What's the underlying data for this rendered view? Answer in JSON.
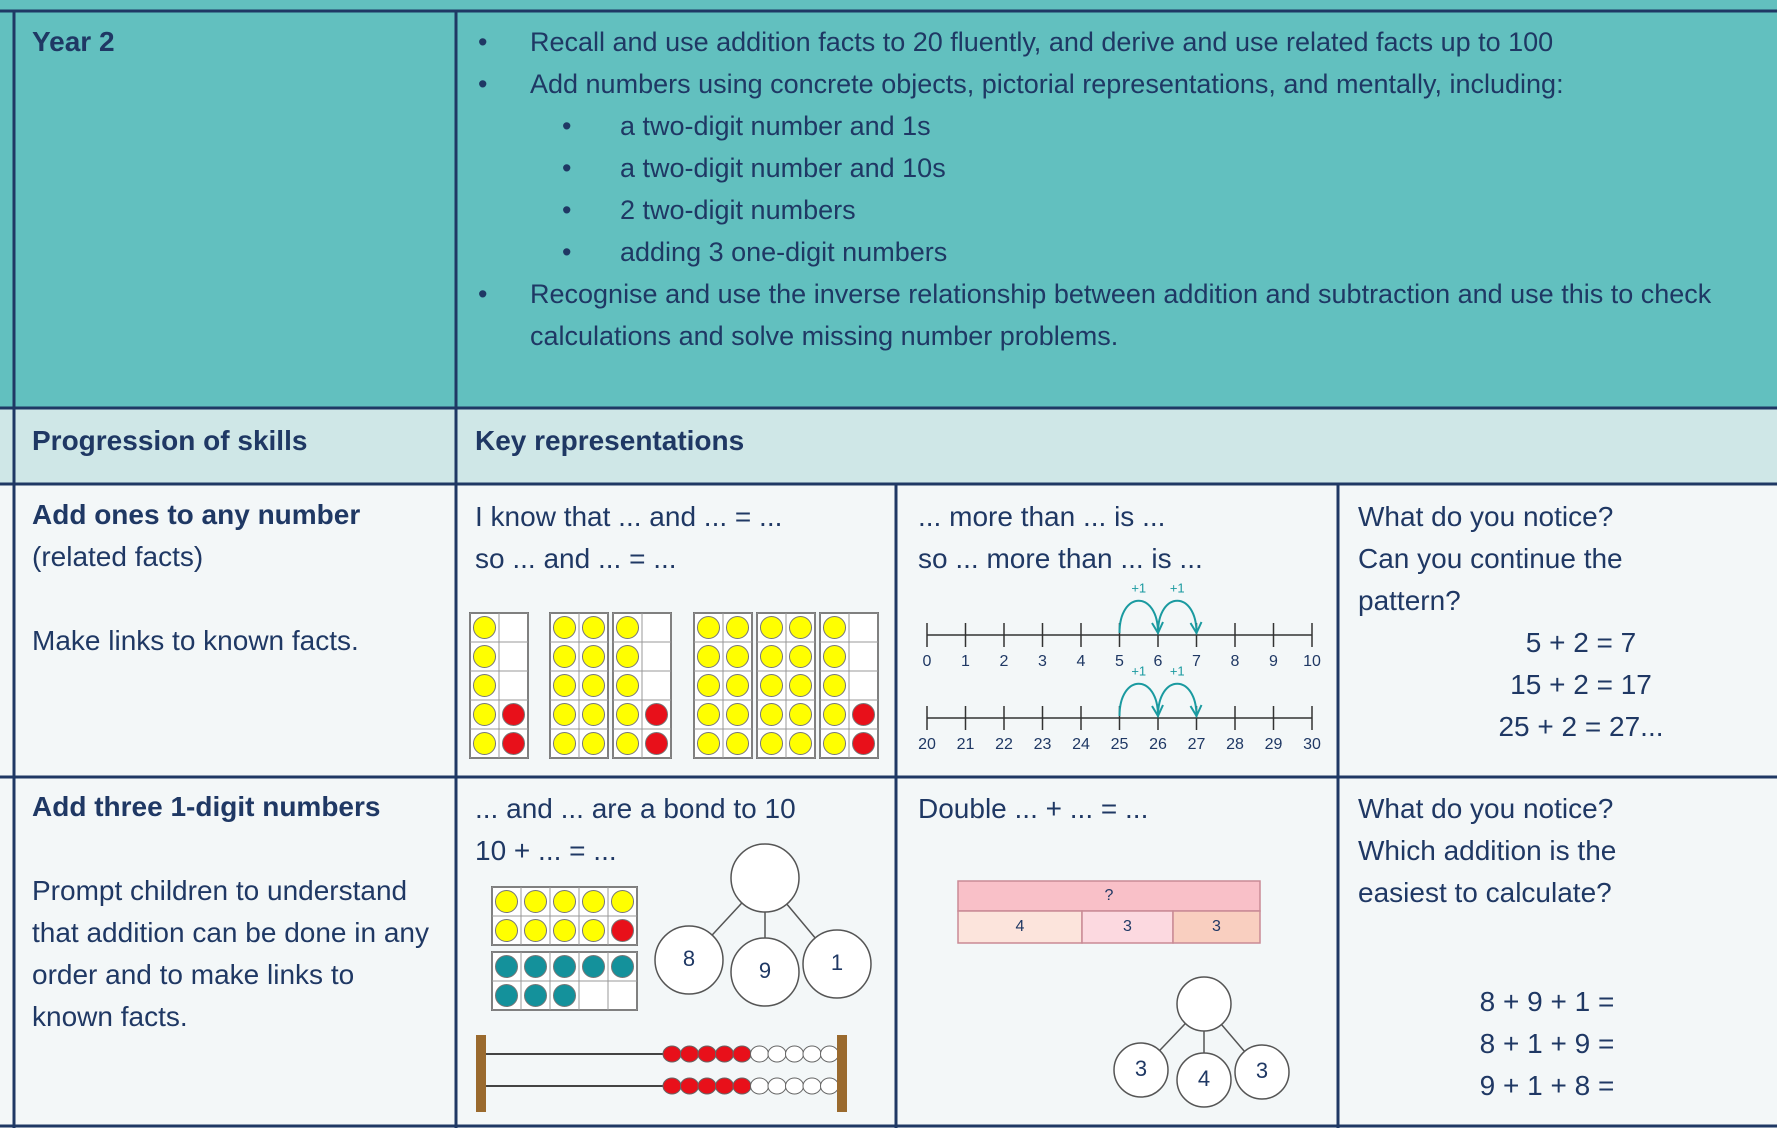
{
  "header": {
    "year": "Year 2",
    "objectives": [
      {
        "text": "Recall and use addition facts to 20 fluently, and derive and use related facts up to 100",
        "sub": []
      },
      {
        "text": "Add numbers using concrete objects, pictorial representations, and mentally, including:",
        "sub": [
          "a two-digit number and 1s",
          "a two-digit number and 10s",
          "2 two-digit numbers",
          "adding 3 one-digit numbers"
        ]
      },
      {
        "text": "Recognise and use the inverse relationship between addition and subtraction and use this to check calculations and solve missing number problems.",
        "sub": []
      }
    ]
  },
  "subheader": {
    "left": "Progression of skills",
    "right": "Key representations"
  },
  "rows": [
    {
      "skill_title": "Add ones to any number",
      "skill_note": "(related facts)",
      "skill_detail": "Make links to known facts.",
      "cells": [
        {
          "lines": [
            "I know that ... and ... = ...",
            "so ... and ... = ..."
          ]
        },
        {
          "lines": [
            "... more than ... is ...",
            "so ... more than ... is ..."
          ],
          "number_lines": [
            {
              "labels": [
                0,
                1,
                2,
                3,
                4,
                5,
                6,
                7,
                8,
                9,
                10
              ],
              "jumps": [
                "+1",
                "+1"
              ]
            },
            {
              "labels": [
                20,
                21,
                22,
                23,
                24,
                25,
                26,
                27,
                28,
                29,
                30
              ],
              "jumps": [
                "+1",
                "+1"
              ]
            }
          ]
        },
        {
          "lines": [
            "What do you notice?",
            "Can you continue the pattern?"
          ],
          "equations": [
            "5 + 2 = 7",
            "15 + 2 = 17",
            "25 + 2 = 27..."
          ]
        }
      ]
    },
    {
      "skill_title": "Add three 1-digit numbers",
      "skill_detail": "Prompt children to understand that addition can be done in any order and to make links to known facts.",
      "cells": [
        {
          "lines": [
            "... and ... are a bond to 10",
            "10 + ... = ..."
          ],
          "part_whole": {
            "parts": [
              8,
              9,
              1
            ]
          }
        },
        {
          "lines": [
            "Double ... + ... = ..."
          ],
          "bar_model": {
            "whole": "?",
            "parts": [
              4,
              3,
              3
            ]
          },
          "part_whole": {
            "parts": [
              3,
              4,
              3
            ]
          }
        },
        {
          "lines": [
            "What do you notice?",
            "Which addition is the easiest to calculate?"
          ],
          "equations": [
            "8 + 9 + 1 =",
            "8 + 1 + 9 =",
            "9 + 1 + 8 ="
          ]
        }
      ]
    }
  ]
}
